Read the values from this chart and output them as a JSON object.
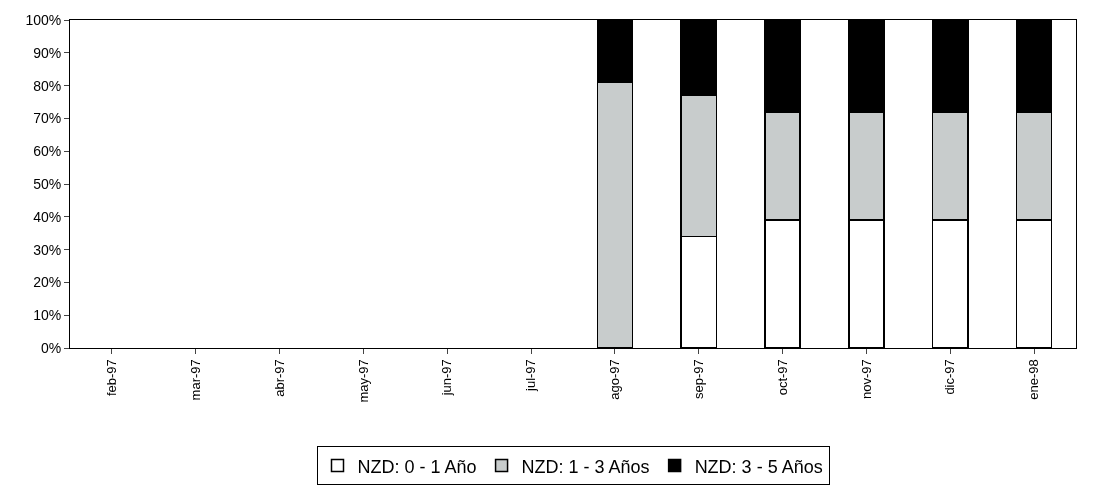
{
  "chart_data": {
    "type": "bar",
    "stacked": true,
    "categories": [
      "feb-97",
      "mar-97",
      "abr-97",
      "may-97",
      "jun-97",
      "jul-97",
      "ago-97",
      "sep-97",
      "oct-97",
      "nov-97",
      "dic-97",
      "ene-98"
    ],
    "series": [
      {
        "name": "NZD: 0 - 1 Año",
        "color": "#ffffff",
        "values": [
          null,
          null,
          null,
          null,
          null,
          null,
          0,
          34,
          39,
          39,
          39,
          39
        ]
      },
      {
        "name": "NZD: 1 - 3 Años",
        "color": "#c8cccc",
        "values": [
          null,
          null,
          null,
          null,
          null,
          null,
          81,
          43,
          33,
          33,
          33,
          33
        ]
      },
      {
        "name": "NZD: 3 - 5 Años",
        "color": "#000000",
        "values": [
          null,
          null,
          null,
          null,
          null,
          null,
          19,
          23,
          28,
          28,
          28,
          28
        ]
      }
    ],
    "ylim": [
      0,
      100
    ],
    "yticks": [
      {
        "value": 0,
        "label": "0%"
      },
      {
        "value": 10,
        "label": "10%"
      },
      {
        "value": 20,
        "label": "20%"
      },
      {
        "value": 30,
        "label": "30%"
      },
      {
        "value": 40,
        "label": "40%"
      },
      {
        "value": 50,
        "label": "50%"
      },
      {
        "value": 60,
        "label": "60%"
      },
      {
        "value": 70,
        "label": "70%"
      },
      {
        "value": 80,
        "label": "80%"
      },
      {
        "value": 90,
        "label": "90%"
      },
      {
        "value": 100,
        "label": "100%"
      }
    ],
    "grid": false,
    "legend": "bottom"
  }
}
